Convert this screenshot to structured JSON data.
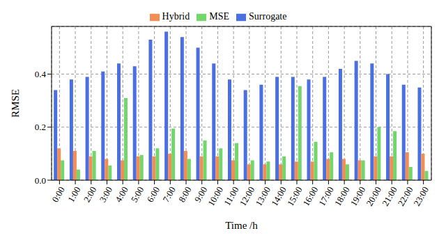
{
  "chart_data": {
    "type": "bar",
    "x_label": "Time /h",
    "y_label": "RMSE",
    "categories": [
      "0:00",
      "1:00",
      "2:00",
      "3:00",
      "4:00",
      "5:00",
      "6:00",
      "7:00",
      "8:00",
      "9:00",
      "10:00",
      "11:00",
      "12:00",
      "13:00",
      "14:00",
      "15:00",
      "16:00",
      "17:00",
      "18:00",
      "19:00",
      "20:00",
      "21:00",
      "22:00",
      "23:00"
    ],
    "series": [
      {
        "name": "Surrogate",
        "color": "#4a6fe3",
        "values": [
          0.34,
          0.38,
          0.39,
          0.41,
          0.44,
          0.43,
          0.53,
          0.56,
          0.54,
          0.5,
          0.44,
          0.38,
          0.34,
          0.36,
          0.39,
          0.39,
          0.38,
          0.39,
          0.42,
          0.45,
          0.44,
          0.4,
          0.36,
          0.35
        ]
      },
      {
        "name": "Hybrid",
        "color": "#f28e54",
        "values": [
          0.12,
          0.11,
          0.09,
          0.08,
          0.075,
          0.09,
          0.09,
          0.1,
          0.11,
          0.09,
          0.09,
          0.075,
          0.06,
          0.06,
          0.06,
          0.07,
          0.07,
          0.08,
          0.08,
          0.075,
          0.09,
          0.09,
          0.105,
          0.1
        ]
      },
      {
        "name": "MSE",
        "color": "#72d66b",
        "values": [
          0.075,
          0.04,
          0.11,
          0.055,
          0.31,
          0.095,
          0.12,
          0.195,
          0.08,
          0.15,
          0.12,
          0.14,
          0.075,
          0.07,
          0.09,
          0.355,
          0.145,
          0.105,
          0.06,
          0.075,
          0.2,
          0.185,
          0.05,
          0.035
        ]
      }
    ],
    "ylim": [
      0,
      0.58
    ],
    "yticks": [
      {
        "value": 0,
        "label": "0.0"
      },
      {
        "value": 0.2,
        "label": "0.2"
      },
      {
        "value": 0.4,
        "label": "0.4"
      }
    ],
    "grid": true,
    "legend": "top"
  }
}
